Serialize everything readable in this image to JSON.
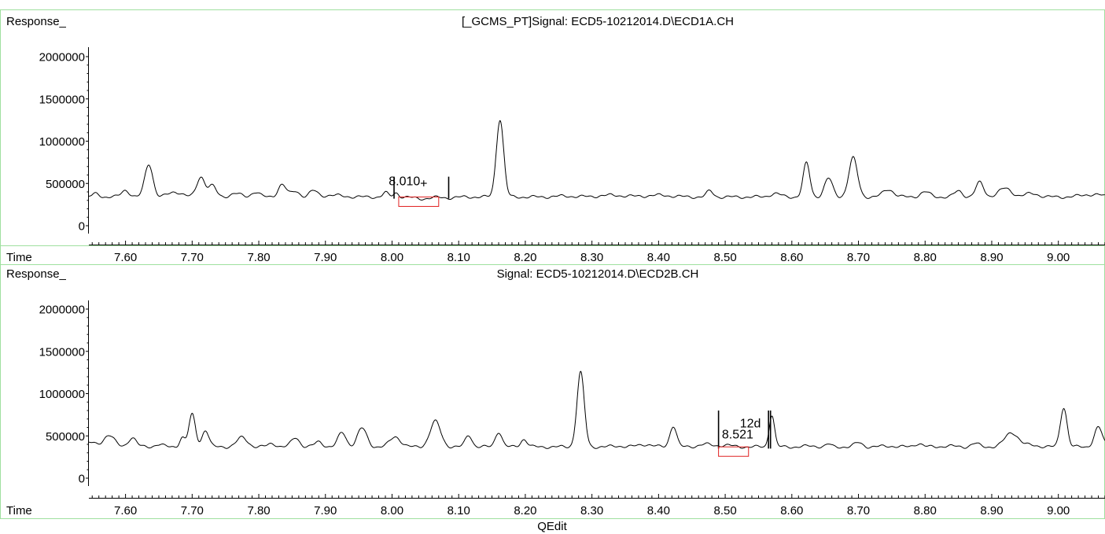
{
  "footer": {
    "label": "QEdit"
  },
  "chart_data": [
    {
      "type": "line",
      "title": "[_GCMS_PT]Signal: ECD5-10212014.D\\ECD1A.CH",
      "ylabel": "Response_",
      "xlabel": "Time",
      "xlim": [
        7.545,
        9.07
      ],
      "ylim": [
        -170000,
        2260000
      ],
      "yticks": [
        0,
        500000,
        1000000,
        1500000,
        2000000
      ],
      "ytick_labels": [
        "0",
        "500000",
        "1000000",
        "1500000",
        "2000000"
      ],
      "xticks": [
        7.6,
        7.7,
        7.8,
        7.9,
        8.0,
        8.1,
        8.2,
        8.3,
        8.4,
        8.5,
        8.6,
        8.7,
        8.8,
        8.9,
        9.0
      ],
      "xtick_labels": [
        "7.60",
        "7.70",
        "7.80",
        "7.90",
        "8.00",
        "8.10",
        "8.20",
        "8.30",
        "8.40",
        "8.50",
        "8.60",
        "8.70",
        "8.80",
        "8.90",
        "9.00"
      ],
      "baseline": 340000,
      "peaks": [
        [
          7.556,
          40000,
          0.005
        ],
        [
          7.6,
          80000,
          0.006
        ],
        [
          7.635,
          390000,
          0.006
        ],
        [
          7.675,
          60000,
          0.01
        ],
        [
          7.713,
          240000,
          0.006
        ],
        [
          7.73,
          130000,
          0.006
        ],
        [
          7.765,
          40000,
          0.008
        ],
        [
          7.795,
          60000,
          0.006
        ],
        [
          7.835,
          150000,
          0.006
        ],
        [
          7.855,
          70000,
          0.006
        ],
        [
          7.882,
          70000,
          0.006
        ],
        [
          7.91,
          20000,
          0.015
        ],
        [
          7.99,
          50000,
          0.004
        ],
        [
          8.006,
          50000,
          0.004
        ],
        [
          8.045,
          -20000,
          0.012
        ],
        [
          8.085,
          -10000,
          0.01
        ],
        [
          8.162,
          920000,
          0.0055
        ],
        [
          8.26,
          10000,
          0.015
        ],
        [
          8.33,
          20000,
          0.02
        ],
        [
          8.4,
          20000,
          0.02
        ],
        [
          8.477,
          70000,
          0.005
        ],
        [
          8.575,
          40000,
          0.008
        ],
        [
          8.622,
          400000,
          0.005
        ],
        [
          8.655,
          220000,
          0.006
        ],
        [
          8.692,
          460000,
          0.0065
        ],
        [
          8.745,
          90000,
          0.008
        ],
        [
          8.8,
          60000,
          0.007
        ],
        [
          8.85,
          70000,
          0.006
        ],
        [
          8.882,
          170000,
          0.006
        ],
        [
          8.92,
          100000,
          0.01
        ],
        [
          8.96,
          40000,
          0.01
        ],
        [
          9.05,
          30000,
          0.015
        ]
      ],
      "annotations": [
        {
          "text": "8.010",
          "x": 7.995,
          "y": 480000
        },
        {
          "text": "+",
          "x": 8.042,
          "y": 450000
        }
      ],
      "integration_marks": [
        8.003,
        8.085
      ],
      "integration_box": [
        8.01,
        8.07
      ]
    },
    {
      "type": "line",
      "title": "Signal: ECD5-10212014.D\\ECD2B.CH",
      "ylabel": "Response_",
      "xlabel": "Time",
      "xlim": [
        7.545,
        9.07
      ],
      "ylim": [
        -170000,
        2260000
      ],
      "yticks": [
        0,
        500000,
        1000000,
        1500000,
        2000000
      ],
      "ytick_labels": [
        "0",
        "500000",
        "1000000",
        "1500000",
        "2000000"
      ],
      "xticks": [
        7.6,
        7.7,
        7.8,
        7.9,
        8.0,
        8.1,
        8.2,
        8.3,
        8.4,
        8.5,
        8.6,
        8.7,
        8.8,
        8.9,
        9.0
      ],
      "xtick_labels": [
        "7.60",
        "7.70",
        "7.80",
        "7.90",
        "8.00",
        "8.10",
        "8.20",
        "8.30",
        "8.40",
        "8.50",
        "8.60",
        "8.70",
        "8.80",
        "8.90",
        "9.00"
      ],
      "baseline": 370000,
      "peaks": [
        [
          7.545,
          50000,
          0.01
        ],
        [
          7.575,
          140000,
          0.008
        ],
        [
          7.61,
          110000,
          0.006
        ],
        [
          7.65,
          30000,
          0.006
        ],
        [
          7.685,
          110000,
          0.004
        ],
        [
          7.7,
          380000,
          0.005
        ],
        [
          7.72,
          200000,
          0.005
        ],
        [
          7.775,
          110000,
          0.008
        ],
        [
          7.82,
          40000,
          0.006
        ],
        [
          7.855,
          110000,
          0.006
        ],
        [
          7.89,
          60000,
          0.006
        ],
        [
          7.925,
          170000,
          0.006
        ],
        [
          7.955,
          220000,
          0.007
        ],
        [
          8.005,
          120000,
          0.008
        ],
        [
          8.065,
          300000,
          0.008
        ],
        [
          8.115,
          140000,
          0.005
        ],
        [
          8.16,
          180000,
          0.005
        ],
        [
          8.198,
          90000,
          0.005
        ],
        [
          8.283,
          880000,
          0.0055
        ],
        [
          8.34,
          10000,
          0.01
        ],
        [
          8.38,
          30000,
          0.01
        ],
        [
          8.422,
          250000,
          0.005
        ],
        [
          8.47,
          30000,
          0.01
        ],
        [
          8.5,
          20000,
          0.01
        ],
        [
          8.57,
          380000,
          0.004
        ],
        [
          8.63,
          10000,
          0.01
        ],
        [
          8.655,
          30000,
          0.004
        ],
        [
          8.7,
          50000,
          0.006
        ],
        [
          8.745,
          10000,
          0.01
        ],
        [
          8.79,
          40000,
          0.006
        ],
        [
          8.835,
          10000,
          0.01
        ],
        [
          8.875,
          40000,
          0.006
        ],
        [
          8.93,
          170000,
          0.01
        ],
        [
          8.96,
          20000,
          0.01
        ],
        [
          9.008,
          470000,
          0.005
        ],
        [
          9.06,
          230000,
          0.006
        ]
      ],
      "annotations": [
        {
          "text": "8.521",
          "x": 8.495,
          "y": 470000
        },
        {
          "text": "12d",
          "x": 8.522,
          "y": 600000
        }
      ],
      "integration_marks": [
        8.49,
        8.565,
        8.568
      ],
      "integration_box": [
        8.49,
        8.535
      ]
    }
  ]
}
